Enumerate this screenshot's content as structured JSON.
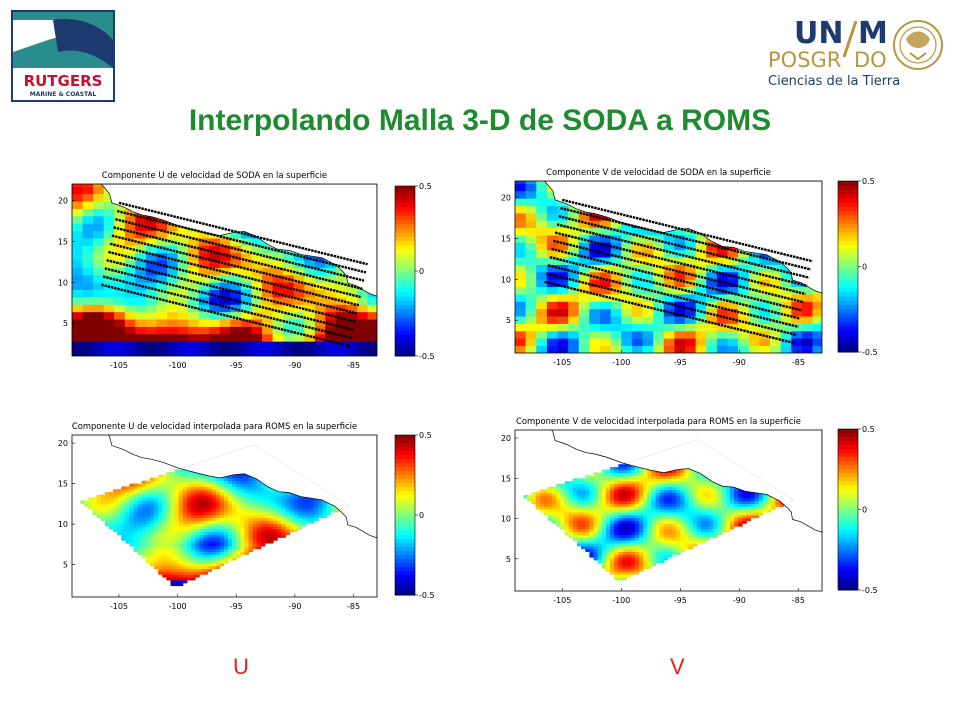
{
  "title": "Interpolando Malla 3-D de SODA a ROMS",
  "logos": {
    "rutgers": {
      "line1": "RUTGERS",
      "line2": "MARINE & COASTAL"
    },
    "unam": {
      "line1": "UN",
      "line1b": "M",
      "line2": "POSGR",
      "line2b": "DO",
      "line3": "Ciencias de la Tierra"
    }
  },
  "colors": {
    "title": "#1f8a2e",
    "label": "#e2231a",
    "land": "#ffffff",
    "rutgers_blue": "#1d3b6e",
    "rutgers_teal": "#2a8c8c",
    "rutgers_red": "#c8102e",
    "unam_gold": "#b8963c",
    "unam_blue": "#1d3b6e"
  },
  "labels": {
    "u": "U",
    "v": "V"
  },
  "chart_data": [
    {
      "type": "heatmap",
      "title": "Componente U de velocidad de SODA en la superficie",
      "x_ticks": [
        "-105",
        "-100",
        "-95",
        "-90",
        "-85"
      ],
      "y_ticks": [
        "20",
        "15",
        "10",
        "5"
      ],
      "xlim": [
        -109,
        -83
      ],
      "ylim": [
        1,
        22
      ],
      "colorbar": {
        "ticks": [
          "0.5",
          "0",
          "-0.5"
        ],
        "range": [
          -0.5,
          0.5
        ]
      },
      "overlay": "diagonal ROMS grid lines (black dotted)"
    },
    {
      "type": "heatmap",
      "title": "Componente V de velocidad de SODA en la superficie",
      "x_ticks": [
        "-105",
        "-100",
        "-95",
        "-90",
        "-85"
      ],
      "y_ticks": [
        "20",
        "15",
        "10",
        "5"
      ],
      "xlim": [
        -109,
        -83
      ],
      "ylim": [
        1,
        22
      ],
      "colorbar": {
        "ticks": [
          "0.5",
          "0",
          "-0.5"
        ],
        "range": [
          -0.5,
          0.5
        ]
      },
      "overlay": "diagonal ROMS grid lines (black dotted)"
    },
    {
      "type": "heatmap",
      "title": "Componente U de velocidad interpolada para ROMS en la superficie",
      "x_ticks": [
        "-105",
        "-100",
        "-95",
        "-90",
        "-85"
      ],
      "y_ticks": [
        "20",
        "15",
        "10",
        "5"
      ],
      "xlim": [
        -109,
        -83
      ],
      "ylim": [
        1,
        21
      ],
      "colorbar": {
        "ticks": [
          "0.5",
          "0",
          "-0.5"
        ],
        "range": [
          -0.5,
          0.5
        ]
      }
    },
    {
      "type": "heatmap",
      "title": "Componente V de velocidad interpolada para ROMS en la superficie",
      "x_ticks": [
        "-105",
        "-100",
        "-95",
        "-90",
        "-85"
      ],
      "y_ticks": [
        "20",
        "15",
        "10",
        "5"
      ],
      "xlim": [
        -109,
        -83
      ],
      "ylim": [
        1,
        21
      ],
      "colorbar": {
        "ticks": [
          "0.5",
          "0",
          "-0.5"
        ],
        "range": [
          -0.5,
          0.5
        ]
      }
    }
  ]
}
